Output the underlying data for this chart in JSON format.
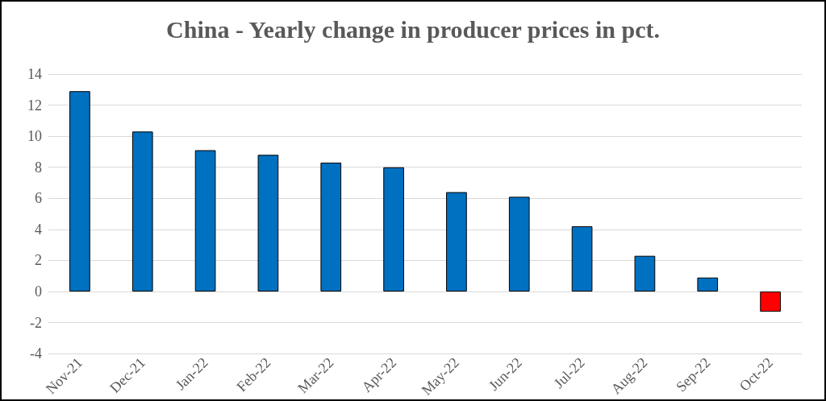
{
  "chart_data": {
    "type": "bar",
    "title": "China - Yearly change in producer prices in pct.",
    "categories": [
      "Nov-21",
      "Dec-21",
      "Jan-22",
      "Feb-22",
      "Mar-22",
      "Apr-22",
      "May-22",
      "Jun-22",
      "Jul-22",
      "Aug-22",
      "Sep-22",
      "Oct-22"
    ],
    "values": [
      12.9,
      10.3,
      9.1,
      8.8,
      8.3,
      8.0,
      6.4,
      6.1,
      4.2,
      2.3,
      0.9,
      -1.3
    ],
    "colors": [
      "#0070c0",
      "#0070c0",
      "#0070c0",
      "#0070c0",
      "#0070c0",
      "#0070c0",
      "#0070c0",
      "#0070c0",
      "#0070c0",
      "#0070c0",
      "#0070c0",
      "#ff0000"
    ],
    "ylim": [
      -4,
      14
    ],
    "yticks": [
      -4,
      -2,
      0,
      2,
      4,
      6,
      8,
      10,
      12,
      14
    ],
    "grid": "y"
  }
}
